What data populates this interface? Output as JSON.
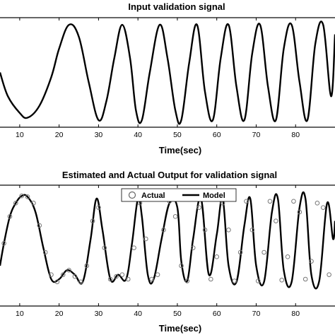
{
  "chart_data": [
    {
      "type": "line",
      "title": "Input validation signal",
      "xlabel": "Time(sec)",
      "ylabel": "",
      "xlim": [
        5,
        90
      ],
      "ylim": [
        -1.15,
        1.15
      ],
      "x_ticks": [
        10,
        20,
        30,
        40,
        50,
        60,
        70,
        80
      ],
      "grid": false,
      "series": [
        {
          "style": "solid black line",
          "x": [
            5,
            7,
            10,
            12,
            15,
            18,
            20,
            22.5,
            25,
            27.5,
            30,
            32,
            34,
            36,
            38,
            39.5,
            41,
            43,
            45.5,
            47.5,
            49.5,
            51,
            53,
            55,
            57,
            59,
            61,
            63,
            65,
            67,
            69,
            71,
            73,
            75,
            77,
            79,
            81,
            83,
            85,
            87,
            89,
            90
          ],
          "y": [
            0.0,
            -0.5,
            -0.85,
            -0.95,
            -0.7,
            -0.1,
            0.5,
            1.0,
            0.75,
            -0.2,
            -1.0,
            -0.6,
            0.3,
            1.0,
            0.3,
            -0.8,
            -1.0,
            0.0,
            1.0,
            0.3,
            -0.8,
            -1.0,
            0.2,
            1.0,
            -0.4,
            -1.0,
            0.3,
            1.0,
            -0.3,
            -1.0,
            0.4,
            1.0,
            -0.3,
            -1.0,
            0.5,
            1.0,
            -0.2,
            -1.0,
            0.6,
            1.0,
            -0.5,
            0.8
          ]
        }
      ]
    },
    {
      "type": "line",
      "title": "Estimated and Actual Output for validation signal",
      "xlabel": "Time(sec)",
      "ylabel": "",
      "xlim": [
        5,
        90
      ],
      "ylim": [
        -0.25,
        1.1
      ],
      "x_ticks": [
        10,
        20,
        30,
        40,
        50,
        60,
        70,
        80
      ],
      "grid": false,
      "legend": {
        "position": "top-center",
        "entries": [
          {
            "label": "Actual",
            "marker": "open-circle"
          },
          {
            "label": "Model",
            "marker": "solid-line"
          }
        ]
      },
      "series": [
        {
          "name": "Model",
          "style": "solid black line",
          "x": [
            5,
            6,
            7.5,
            9,
            10.5,
            12,
            14,
            16,
            18,
            20,
            22,
            24,
            26,
            28,
            29.5,
            31,
            33,
            35,
            37,
            38.5,
            40,
            41,
            42.5,
            44,
            46,
            48,
            50,
            51,
            52.5,
            54,
            56,
            58,
            60,
            61.5,
            63,
            65,
            67,
            68.5,
            70,
            72,
            74,
            75.5,
            77,
            79,
            81,
            82.5,
            84,
            86,
            88,
            89.5,
            90
          ],
          "y": [
            0.2,
            0.45,
            0.75,
            0.9,
            0.98,
            0.97,
            0.8,
            0.4,
            0.05,
            0.05,
            0.15,
            0.1,
            0.02,
            0.5,
            0.95,
            0.6,
            0.05,
            0.1,
            0.05,
            0.45,
            0.95,
            0.75,
            0.1,
            0.05,
            0.5,
            0.9,
            0.85,
            0.25,
            0.03,
            0.5,
            0.95,
            0.1,
            0.55,
            0.95,
            0.2,
            0.02,
            0.65,
            0.95,
            0.2,
            0.02,
            0.8,
            0.95,
            0.15,
            0.02,
            0.85,
            0.95,
            0.1,
            0.03,
            0.9,
            0.5,
            0.7
          ]
        },
        {
          "name": "Actual",
          "style": "open grey circles",
          "x": [
            6,
            7.5,
            9,
            10.5,
            12,
            13.5,
            15,
            16.5,
            18,
            19.5,
            21,
            22.5,
            24,
            25.5,
            27,
            28.5,
            30,
            31.5,
            33,
            34.5,
            36,
            37.5,
            39,
            40.5,
            42,
            43.5,
            45,
            46.5,
            48,
            49.5,
            51,
            52.5,
            54,
            55.5,
            57,
            58.5,
            60,
            61.5,
            63,
            64.5,
            66,
            67.5,
            69,
            70.5,
            72,
            73.5,
            75,
            76.5,
            78,
            79.5,
            81,
            82.5,
            84,
            85.5,
            87,
            88.5
          ],
          "y": [
            0.45,
            0.75,
            0.9,
            0.98,
            0.97,
            0.9,
            0.65,
            0.35,
            0.1,
            0.02,
            0.1,
            0.15,
            0.08,
            0.02,
            0.2,
            0.7,
            0.85,
            0.4,
            0.05,
            0.08,
            0.1,
            0.05,
            0.4,
            0.9,
            0.5,
            0.05,
            0.1,
            0.6,
            0.92,
            0.75,
            0.2,
            0.03,
            0.4,
            0.85,
            0.6,
            0.05,
            0.3,
            0.9,
            0.6,
            0.03,
            0.35,
            0.92,
            0.6,
            0.03,
            0.35,
            0.92,
            0.7,
            0.04,
            0.3,
            0.92,
            0.8,
            0.05,
            0.25,
            0.9,
            0.85,
            0.1
          ]
        }
      ]
    }
  ]
}
